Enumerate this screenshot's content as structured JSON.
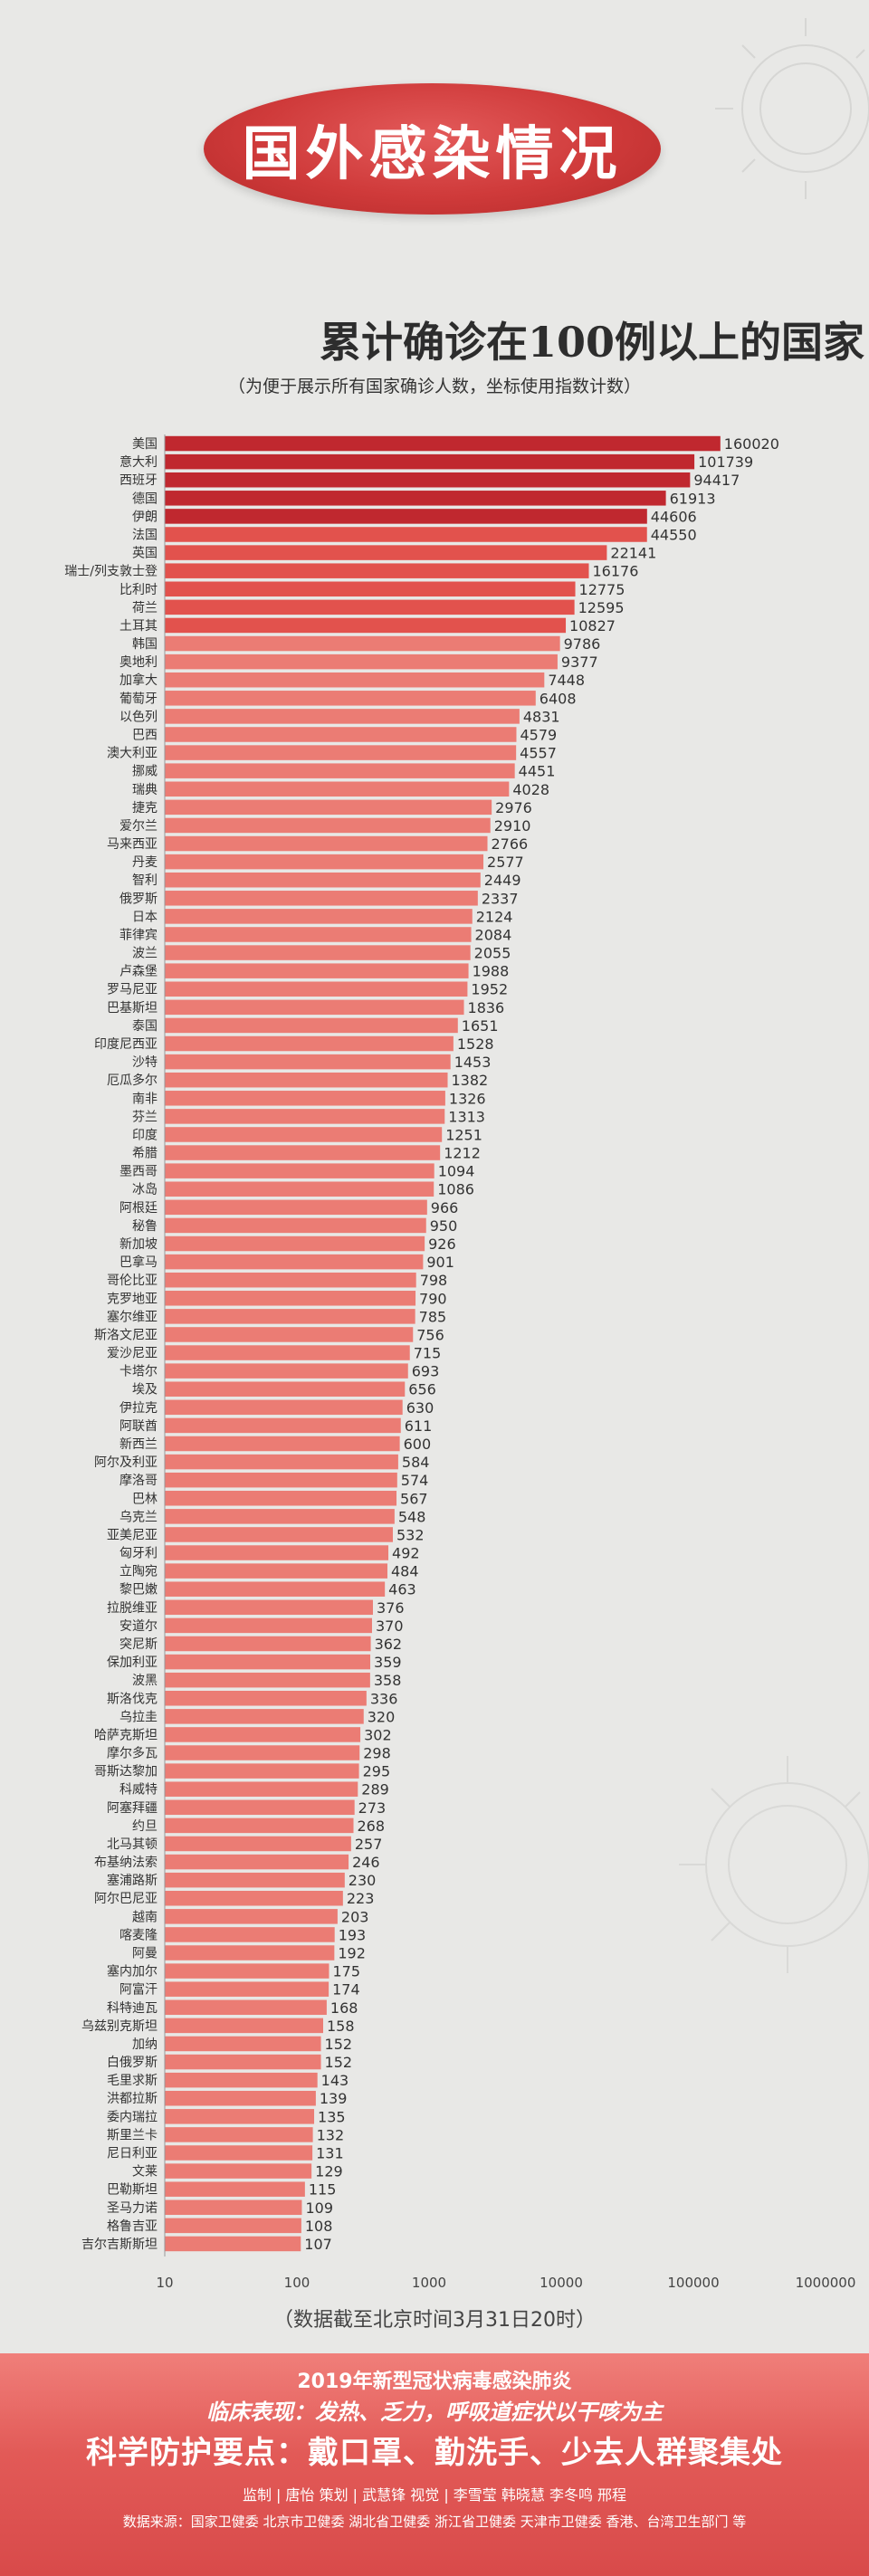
{
  "banner": {
    "title": "国外感染情况"
  },
  "chart_data": {
    "type": "bar",
    "orientation": "horizontal",
    "title": "累计确诊在100例以上的国家",
    "subtitle": "（为便于展示所有国家确诊人数，坐标使用指数计数）",
    "x_scale": "log",
    "xlim": [
      10,
      1000000
    ],
    "x_ticks": [
      "10",
      "100",
      "1000",
      "10000",
      "100000",
      "1000000"
    ],
    "grid": false,
    "categories": [
      "美国",
      "意大利",
      "西班牙",
      "德国",
      "伊朗",
      "法国",
      "英国",
      "瑞士/列支敦士登",
      "比利时",
      "荷兰",
      "土耳其",
      "韩国",
      "奥地利",
      "加拿大",
      "葡萄牙",
      "以色列",
      "巴西",
      "澳大利亚",
      "挪威",
      "瑞典",
      "捷克",
      "爱尔兰",
      "马来西亚",
      "丹麦",
      "智利",
      "俄罗斯",
      "日本",
      "菲律宾",
      "波兰",
      "卢森堡",
      "罗马尼亚",
      "巴基斯坦",
      "泰国",
      "印度尼西亚",
      "沙特",
      "厄瓜多尔",
      "南非",
      "芬兰",
      "印度",
      "希腊",
      "墨西哥",
      "冰岛",
      "阿根廷",
      "秘鲁",
      "新加坡",
      "巴拿马",
      "哥伦比亚",
      "克罗地亚",
      "塞尔维亚",
      "斯洛文尼亚",
      "爱沙尼亚",
      "卡塔尔",
      "埃及",
      "伊拉克",
      "阿联酋",
      "新西兰",
      "阿尔及利亚",
      "摩洛哥",
      "巴林",
      "乌克兰",
      "亚美尼亚",
      "匈牙利",
      "立陶宛",
      "黎巴嫩",
      "拉脱维亚",
      "安道尔",
      "突尼斯",
      "保加利亚",
      "波黑",
      "斯洛伐克",
      "乌拉圭",
      "哈萨克斯坦",
      "摩尔多瓦",
      "哥斯达黎加",
      "科威特",
      "阿塞拜疆",
      "约旦",
      "北马其顿",
      "布基纳法索",
      "塞浦路斯",
      "阿尔巴尼亚",
      "越南",
      "喀麦隆",
      "阿曼",
      "塞内加尔",
      "阿富汗",
      "科特迪瓦",
      "乌兹别克斯坦",
      "加纳",
      "白俄罗斯",
      "毛里求斯",
      "洪都拉斯",
      "委内瑞拉",
      "斯里兰卡",
      "尼日利亚",
      "文莱",
      "巴勒斯坦",
      "圣马力诺",
      "格鲁吉亚",
      "吉尔吉斯斯坦"
    ],
    "values": [
      160020,
      101739,
      94417,
      61913,
      44606,
      44550,
      22141,
      16176,
      12775,
      12595,
      10827,
      9786,
      9377,
      7448,
      6408,
      4831,
      4579,
      4557,
      4451,
      4028,
      2976,
      2910,
      2766,
      2577,
      2449,
      2337,
      2124,
      2084,
      2055,
      1988,
      1952,
      1836,
      1651,
      1528,
      1453,
      1382,
      1326,
      1313,
      1251,
      1212,
      1094,
      1086,
      966,
      950,
      926,
      901,
      798,
      790,
      785,
      756,
      715,
      693,
      656,
      630,
      611,
      600,
      584,
      574,
      567,
      548,
      532,
      492,
      484,
      463,
      376,
      370,
      362,
      359,
      358,
      336,
      320,
      302,
      298,
      295,
      289,
      273,
      268,
      257,
      246,
      230,
      223,
      203,
      193,
      192,
      175,
      174,
      168,
      158,
      152,
      152,
      143,
      139,
      135,
      132,
      131,
      129,
      115,
      109,
      108,
      107
    ],
    "value_labels": [
      "160020",
      "101739",
      "94417",
      "61913",
      "44606",
      "44550",
      "22141",
      "16176",
      "12775",
      "12595",
      "10827",
      "9786",
      "9377",
      "7448",
      "6408",
      "4831",
      "4579",
      "4557",
      "4451",
      "4028",
      "2976",
      "2910",
      "2766",
      "2577",
      "2449",
      "2337",
      "2124",
      "2084",
      "2055",
      "1988",
      "1952",
      "1836",
      "1651",
      "1528",
      "1453",
      "1382",
      "1326",
      "1313",
      "1251",
      "1212",
      "1094",
      "1086",
      "966",
      "950",
      "926",
      "901",
      "798",
      "790",
      "785",
      "756",
      "715",
      "693",
      "656",
      "630",
      "611",
      "600",
      "584",
      "574",
      "567",
      "548",
      "532",
      "492",
      "484",
      "463",
      "376",
      "370",
      "362",
      "359",
      "358",
      "336",
      "320",
      "302",
      "298",
      "295",
      "289",
      "273",
      "268",
      "257",
      "246",
      "230",
      "223",
      "203",
      "193",
      "192",
      "175",
      "174",
      "168",
      "158",
      "152",
      "152",
      "143",
      "139",
      "135",
      "132",
      "131",
      "129",
      "115",
      "109",
      "108",
      "107"
    ],
    "colors": {
      "top": "#c0282f",
      "mid": "#e2524d",
      "rest": "#eb7c74"
    }
  },
  "note": "（数据截至北京时间3月31日20时）",
  "footer": {
    "line1": "2019年新型冠状病毒感染肺炎",
    "line2": "临床表现：发热、乏力，呼吸道症状以干咳为主",
    "line3": "科学防护要点：戴口罩、勤洗手、少去人群聚集处",
    "line4": "监制 | 唐怡   策划 | 武慧锋   视觉 | 李雪莹  韩晓慧  李冬鸣  邢程",
    "line5": "数据来源：国家卫健委   北京市卫健委   湖北省卫健委   浙江省卫健委   天津市卫健委   香港、台湾卫生部门 等"
  }
}
